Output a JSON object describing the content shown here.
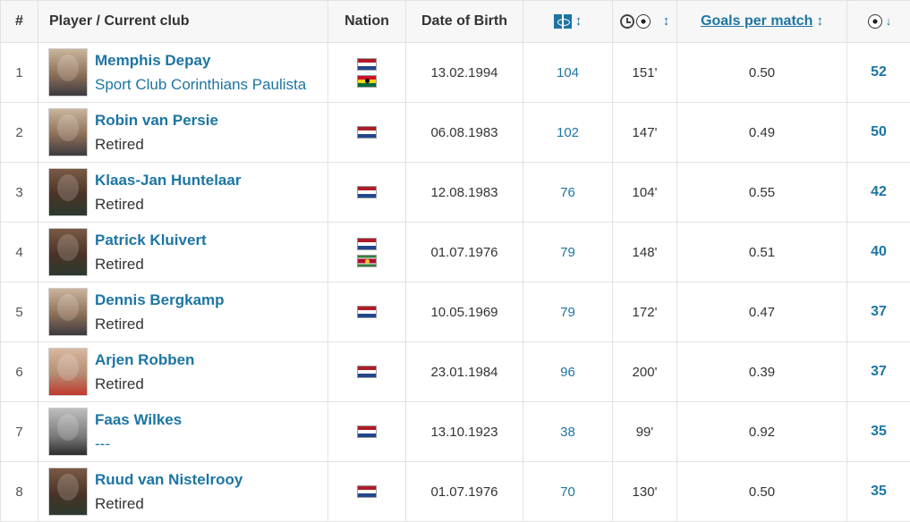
{
  "header": {
    "rank": "#",
    "player": "Player / Current club",
    "nation": "Nation",
    "dob": "Date of Birth",
    "goals_per_match": "Goals per match",
    "sort_glyph": "↕",
    "sort_desc_glyph": "↓",
    "icons": {
      "appearances": "pitch-icon",
      "minutes_per_goal": "clock-ball-icon",
      "goals": "ball-icon"
    }
  },
  "colors": {
    "link": "#1d75a3",
    "header_bg": "#f7f7f7",
    "border": "#e2e2e2"
  },
  "rows": [
    {
      "rank": "1",
      "name": "Memphis Depay",
      "club": "Sport Club Corinthians Paulista",
      "nations": [
        "Netherlands",
        "Ghana"
      ],
      "dob": "13.02.1994",
      "apps": "104",
      "mpg": "151'",
      "gpm": "0.50",
      "goals": "52"
    },
    {
      "rank": "2",
      "name": "Robin van Persie",
      "club": "Retired",
      "nations": [
        "Netherlands"
      ],
      "dob": "06.08.1983",
      "apps": "102",
      "mpg": "147'",
      "gpm": "0.49",
      "goals": "50"
    },
    {
      "rank": "3",
      "name": "Klaas-Jan Huntelaar",
      "club": "Retired",
      "nations": [
        "Netherlands"
      ],
      "dob": "12.08.1983",
      "apps": "76",
      "mpg": "104'",
      "gpm": "0.55",
      "goals": "42"
    },
    {
      "rank": "4",
      "name": "Patrick Kluivert",
      "club": "Retired",
      "nations": [
        "Netherlands",
        "Suriname"
      ],
      "dob": "01.07.1976",
      "apps": "79",
      "mpg": "148'",
      "gpm": "0.51",
      "goals": "40"
    },
    {
      "rank": "5",
      "name": "Dennis Bergkamp",
      "club": "Retired",
      "nations": [
        "Netherlands"
      ],
      "dob": "10.05.1969",
      "apps": "79",
      "mpg": "172'",
      "gpm": "0.47",
      "goals": "37"
    },
    {
      "rank": "6",
      "name": "Arjen Robben",
      "club": "Retired",
      "nations": [
        "Netherlands"
      ],
      "dob": "23.01.1984",
      "apps": "96",
      "mpg": "200'",
      "gpm": "0.39",
      "goals": "37"
    },
    {
      "rank": "7",
      "name": "Faas Wilkes",
      "club": "---",
      "nations": [
        "Netherlands"
      ],
      "dob": "13.10.1923",
      "apps": "38",
      "mpg": "99'",
      "gpm": "0.92",
      "goals": "35"
    },
    {
      "rank": "8",
      "name": "Ruud van Nistelrooy",
      "club": "Retired",
      "nations": [
        "Netherlands"
      ],
      "dob": "01.07.1976",
      "apps": "70",
      "mpg": "130'",
      "gpm": "0.50",
      "goals": "35"
    }
  ]
}
